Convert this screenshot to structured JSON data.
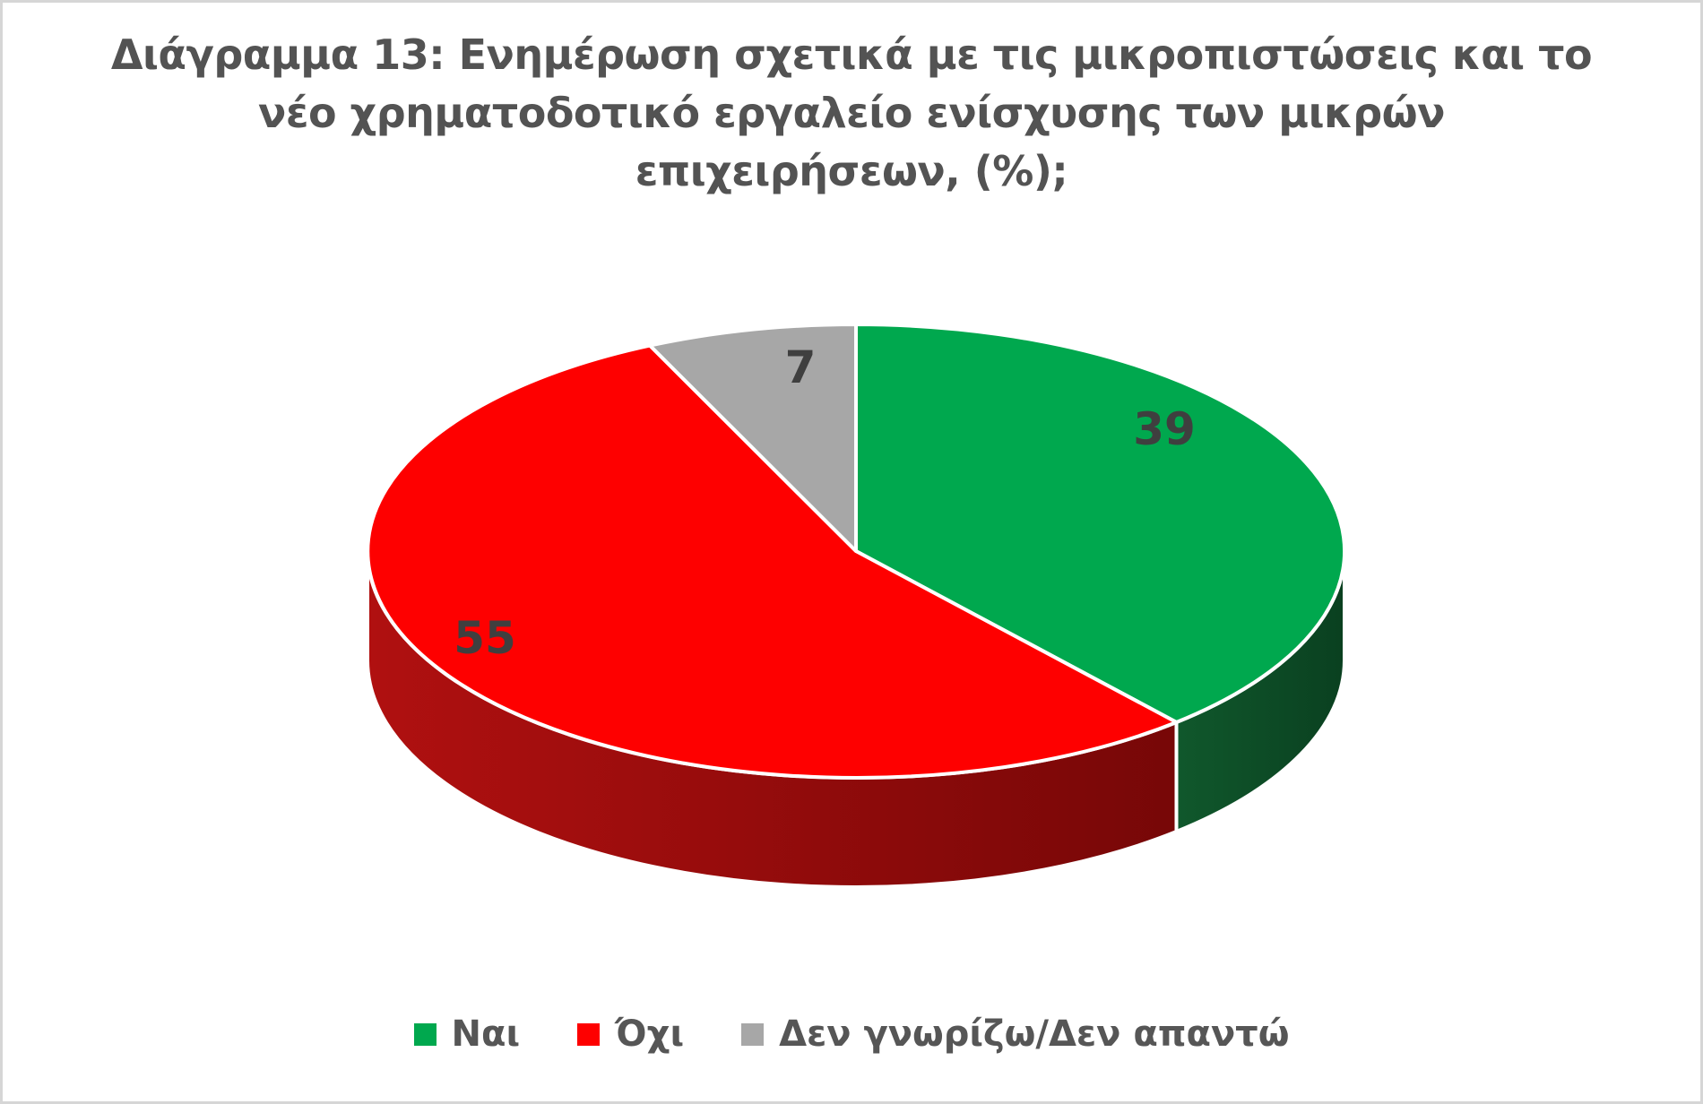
{
  "title": {
    "line1": "Διάγραμμα 13: Ενημέρωση σχετικά με τις μικροπιστώσεις και το",
    "line2": "νέο χρηματοδοτικό εργαλείο ενίσχυσης των μικρών",
    "line3": "επιχειρήσεων, (%);"
  },
  "chart_data": {
    "type": "pie",
    "style": "3d",
    "title": "Διάγραμμα 13: Ενημέρωση σχετικά με τις μικροπιστώσεις και το νέο χρηματοδοτικό εργαλείο ενίσχυσης των μικρών επιχειρήσεων, (%);",
    "unit": "%",
    "categories": [
      "Ναι",
      "Όχι",
      "Δεν γνωρίζω/Δεν απαντώ"
    ],
    "values": [
      39,
      55,
      7
    ],
    "colors": [
      "#00a84e",
      "#fe0000",
      "#a7a7a7"
    ],
    "side_gradients": {
      "0": [
        "#10582c",
        "#0a4020"
      ],
      "1": [
        "#b01010",
        "#770707"
      ]
    },
    "label_color": "#3f3f3f",
    "separator_color": "#ffffff",
    "start_angle_deg": 0,
    "direction": "clockwise",
    "legend_position": "bottom"
  }
}
